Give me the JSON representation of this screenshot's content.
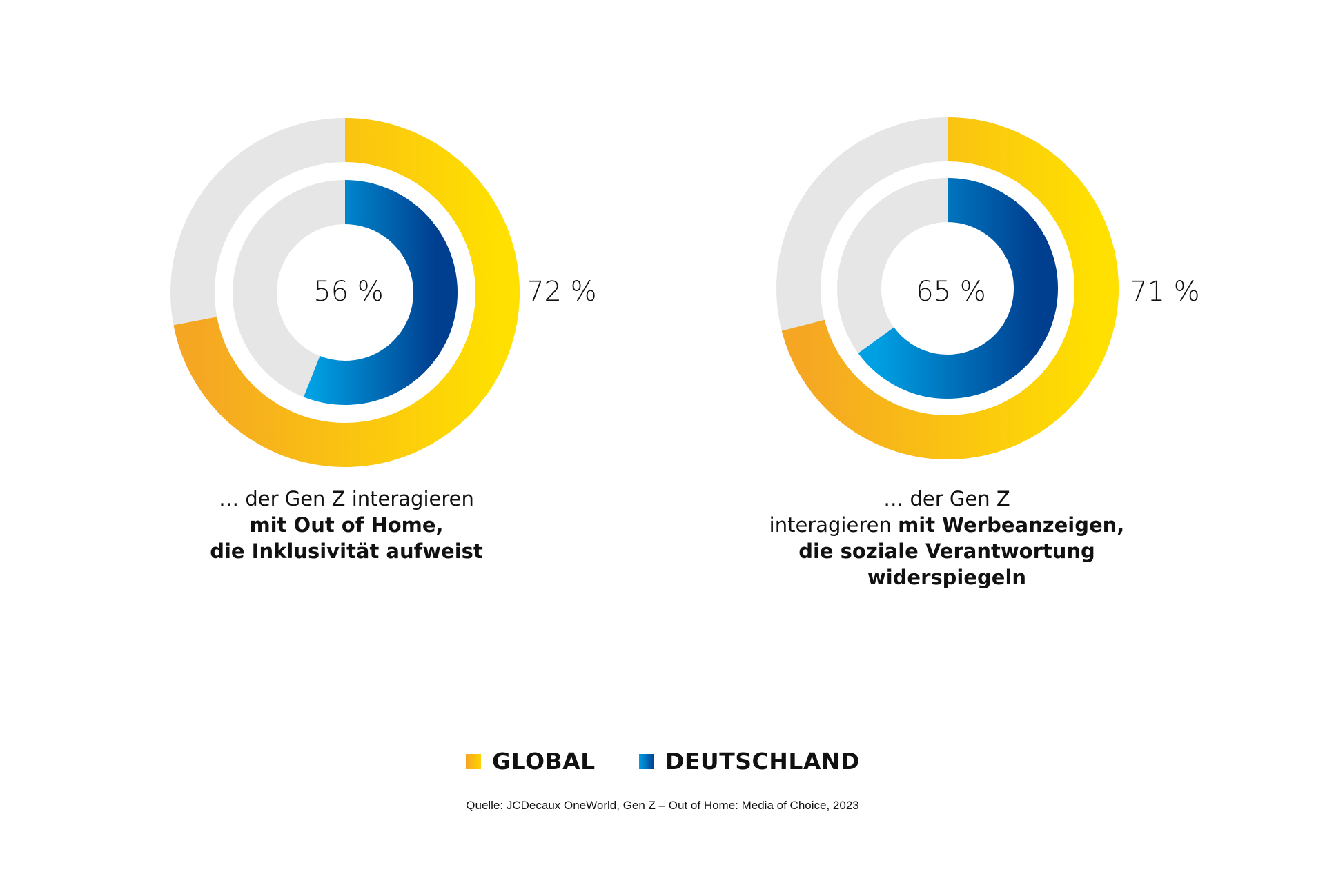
{
  "colors": {
    "global_start": "#F5A623",
    "global_end": "#FFE000",
    "deutschland_start": "#00A0E3",
    "deutschland_end": "#003F8F",
    "track": "#E6E6E6"
  },
  "chart_data": [
    {
      "type": "pie",
      "variant": "nested-donut",
      "series": [
        {
          "name": "GLOBAL",
          "value": 72,
          "label": "72 %"
        },
        {
          "name": "DEUTSCHLAND",
          "value": 56,
          "label": "56 %"
        }
      ],
      "caption": {
        "line1": "… der Gen Z interagieren",
        "line2": "mit Out of Home,",
        "line3": "die Inklusivität aufweist"
      }
    },
    {
      "type": "pie",
      "variant": "nested-donut",
      "series": [
        {
          "name": "GLOBAL",
          "value": 71,
          "label": "71 %"
        },
        {
          "name": "DEUTSCHLAND",
          "value": 65,
          "label": "65 %"
        }
      ],
      "caption": {
        "line1": "… der Gen Z",
        "line2_normal": "interagieren ",
        "line2_bold": "mit Werbeanzeigen,",
        "line3": "die soziale Verantwortung",
        "line4": "widerspiegeln"
      }
    }
  ],
  "legend": {
    "global": "GLOBAL",
    "deutschland": "DEUTSCHLAND"
  },
  "source": "Quelle: JCDecaux OneWorld, Gen Z – Out of Home: Media of Choice, 2023"
}
